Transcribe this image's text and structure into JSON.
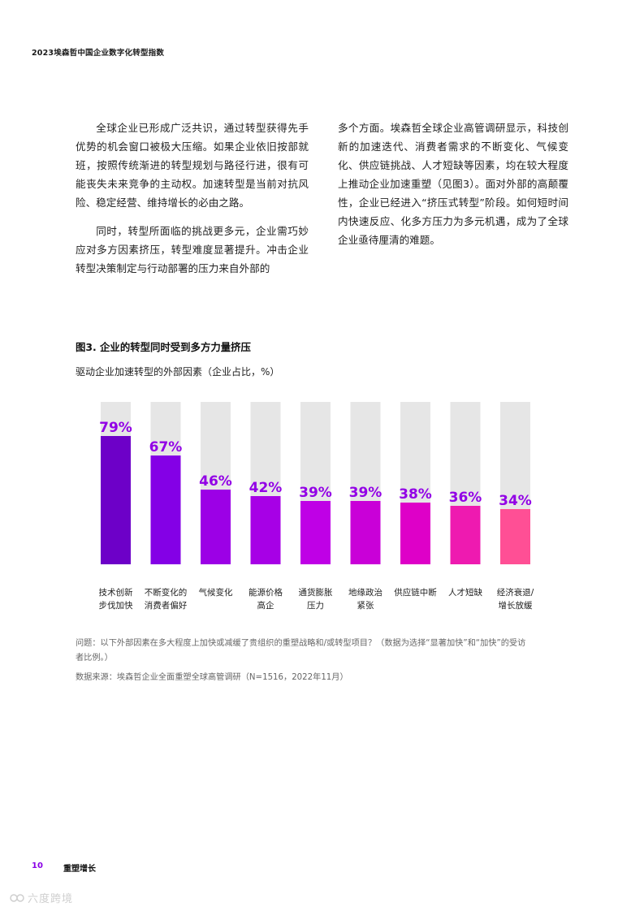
{
  "header": {
    "title": "2023埃森哲中国企业数字化转型指数"
  },
  "body": {
    "left_paragraphs": [
      "全球企业已形成广泛共识，通过转型获得先手优势的机会窗口被极大压缩。如果企业依旧按部就班，按照传统渐进的转型规划与路径行进，很有可能丧失未来竞争的主动权。加速转型是当前对抗风险、稳定经营、维持增长的必由之路。",
      "同时，转型所面临的挑战更多元，企业需巧妙应对多方因素挤压，转型难度显著提升。冲击企业转型决策制定与行动部署的压力来自外部的"
    ],
    "right_paragraphs": [
      "多个方面。埃森哲全球企业高管调研显示，科技创新的加速迭代、消费者需求的不断变化、气候变化、供应链挑战、人才短缺等因素，均在较大程度上推动企业加速重塑（见图3）。面对外部的高颠覆性，企业已经进入“挤压式转型”阶段。如何短时间内快速反应、化多方压力为多元机遇，成为了全球企业亟待厘清的难题。"
    ]
  },
  "figure": {
    "title": "图3. 企业的转型同时受到多方力量挤压",
    "subtitle": "驱动企业加速转型的外部因素（企业占比，%）",
    "question": "问题：以下外部因素在多大程度上加快或减缓了贵组织的重塑战略和/或转型项目？（数据为选择“显著加快”和“加快”的受访者比例。）",
    "source": "数据来源：埃森哲企业全面重塑全球高管调研（N=1516，2022年11月）"
  },
  "chart_data": {
    "type": "bar",
    "title": "图3. 企业的转型同时受到多方力量挤压",
    "subtitle": "驱动企业加速转型的外部因素（企业占比，%）",
    "categories": [
      [
        "技术创新",
        "步伐加快"
      ],
      [
        "不断变化的",
        "消费者偏好"
      ],
      [
        "气候变化"
      ],
      [
        "能源价格",
        "高企"
      ],
      [
        "通货膨胀",
        "压力"
      ],
      [
        "地缘政治",
        "紧张"
      ],
      [
        "供应链中断"
      ],
      [
        "人才短缺"
      ],
      [
        "经济衰退/",
        "增长放缓"
      ]
    ],
    "values": [
      79,
      67,
      46,
      42,
      39,
      39,
      38,
      36,
      34
    ],
    "value_labels": [
      "79%",
      "67%",
      "46%",
      "42%",
      "39%",
      "39%",
      "38%",
      "36%",
      "34%"
    ],
    "ylim": [
      0,
      100
    ],
    "xlabel": "",
    "ylabel": "",
    "grid": false,
    "bar_colors": [
      "#6d00c8",
      "#8400e6",
      "#9c00e6",
      "#a700e6",
      "#bf00e6",
      "#c900d8",
      "#de00c8",
      "#ee1ab0",
      "#ff4f95"
    ],
    "background_bar_color": "#e6e6e6",
    "label_color": "#9200e6"
  },
  "footer": {
    "page_number": "10",
    "section": "重塑增长"
  },
  "watermark": {
    "text": "六度跨境"
  }
}
